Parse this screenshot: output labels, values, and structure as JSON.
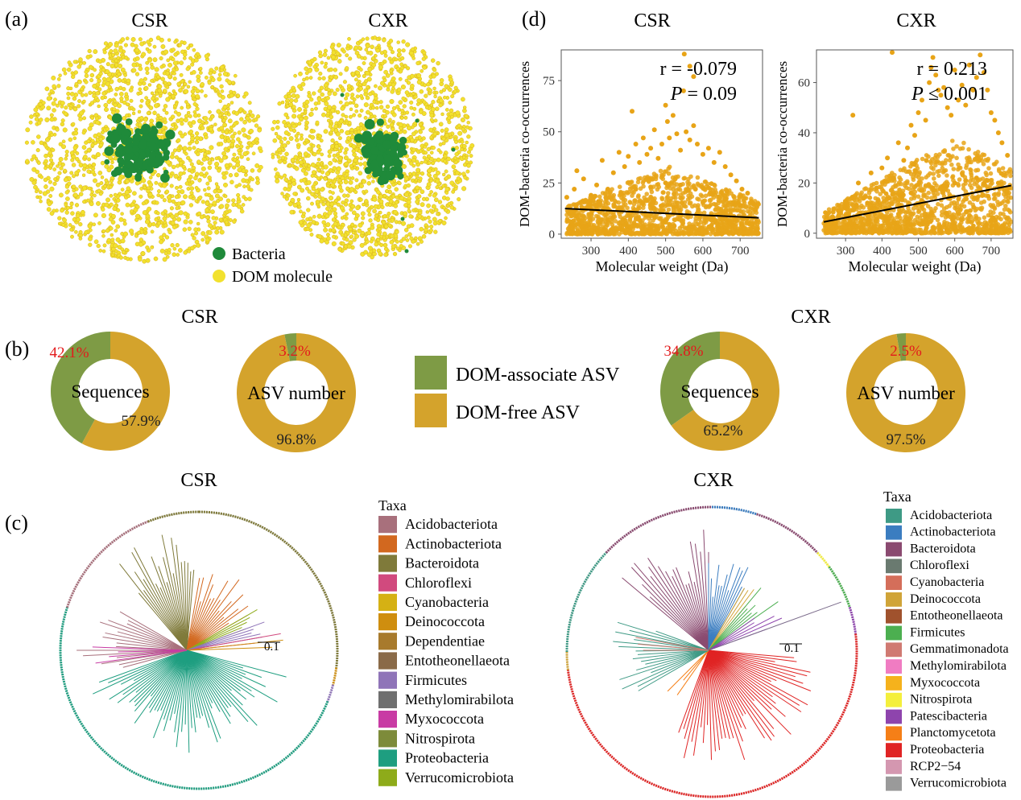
{
  "panel_labels": {
    "a": "(a)",
    "b": "(b)",
    "c": "(c)",
    "d": "(d)"
  },
  "colors": {
    "bacteria": "#1f8a3a",
    "dom": "#f2e12e",
    "dom_stroke": "#d9b21f",
    "scatter_point": "#e8a417",
    "dom_associate": "#7e9b45",
    "dom_free": "#d4a32c",
    "pct_red": "#e31a1c"
  },
  "network": {
    "legend": {
      "bacteria": "Bacteria",
      "dom": "DOM molecule"
    },
    "panels": [
      {
        "title": "CSR"
      },
      {
        "title": "CXR"
      }
    ]
  },
  "donut_legend": {
    "associate": "DOM-associate ASV",
    "free": "DOM-free ASV"
  },
  "trees": {
    "panels": [
      {
        "title": "CSR",
        "scale_label": "0.1",
        "legend_title": "Taxa",
        "taxa": [
          {
            "name": "Acidobacteriota",
            "color": "#a8707c"
          },
          {
            "name": "Actinobacteriota",
            "color": "#d2681f"
          },
          {
            "name": "Bacteroidota",
            "color": "#7f7a3a"
          },
          {
            "name": "Chloroflexi",
            "color": "#d14a7e"
          },
          {
            "name": "Cyanobacteria",
            "color": "#d5b114"
          },
          {
            "name": "Deinococcota",
            "color": "#cf8e0f"
          },
          {
            "name": "Dependentiae",
            "color": "#a87a2c"
          },
          {
            "name": "Entotheonellaeota",
            "color": "#8a6a48"
          },
          {
            "name": "Firmicutes",
            "color": "#8f74b8"
          },
          {
            "name": "Methylomirabilota",
            "color": "#6f6f6f"
          },
          {
            "name": "Myxococcota",
            "color": "#c83ba4"
          },
          {
            "name": "Nitrospirota",
            "color": "#7d8b3a"
          },
          {
            "name": "Proteobacteria",
            "color": "#1e9e80"
          },
          {
            "name": "Verrucomicrobiota",
            "color": "#8eab1a"
          }
        ]
      },
      {
        "title": "CXR",
        "scale_label": "0.1",
        "legend_title": "Taxa",
        "taxa": [
          {
            "name": "Acidobacteriota",
            "color": "#3e9a85"
          },
          {
            "name": "Actinobacteriota",
            "color": "#3b7dc0"
          },
          {
            "name": "Bacteroidota",
            "color": "#8a4a70"
          },
          {
            "name": "Chloroflexi",
            "color": "#6a7a70"
          },
          {
            "name": "Cyanobacteria",
            "color": "#d46e5a"
          },
          {
            "name": "Deinococcota",
            "color": "#d0a438"
          },
          {
            "name": "Entotheonellaeota",
            "color": "#a0522d"
          },
          {
            "name": "Firmicutes",
            "color": "#4caf50"
          },
          {
            "name": "Gemmatimonadota",
            "color": "#d07a72"
          },
          {
            "name": "Methylomirabilota",
            "color": "#f07cc2"
          },
          {
            "name": "Myxococcota",
            "color": "#f5b21c"
          },
          {
            "name": "Nitrospirota",
            "color": "#f4ef3c"
          },
          {
            "name": "Patescibacteria",
            "color": "#8e44ad"
          },
          {
            "name": "Planctomycetota",
            "color": "#f57f17"
          },
          {
            "name": "Proteobacteria",
            "color": "#e02424"
          },
          {
            "name": "RCP2−54",
            "color": "#d497b0"
          },
          {
            "name": "Verrucomicrobiota",
            "color": "#9a9a9a"
          }
        ]
      }
    ]
  },
  "chart_data": [
    {
      "type": "scatter",
      "panel": "d",
      "title": "CSR",
      "xlabel": "Molecular weight (Da)",
      "ylabel": "DOM-bacteria co-occurrences",
      "xlim": [
        220,
        760
      ],
      "ylim": [
        -2,
        90
      ],
      "xticks": [
        300,
        400,
        500,
        600,
        700
      ],
      "yticks": [
        0,
        25,
        50,
        75
      ],
      "annotation": {
        "r": "r = -0.079",
        "p_italic": "P",
        "p_rest": " = 0.09"
      },
      "trend_line": {
        "x": [
          230,
          750
        ],
        "y": [
          12.5,
          8
        ]
      },
      "points": [
        [
          235,
          18
        ],
        [
          255,
          22
        ],
        [
          262,
          31
        ],
        [
          280,
          27
        ],
        [
          300,
          19
        ],
        [
          315,
          24
        ],
        [
          330,
          36
        ],
        [
          345,
          22
        ],
        [
          360,
          30
        ],
        [
          375,
          40
        ],
        [
          390,
          33
        ],
        [
          400,
          38
        ],
        [
          410,
          60
        ],
        [
          420,
          44
        ],
        [
          430,
          35
        ],
        [
          440,
          47
        ],
        [
          450,
          39
        ],
        [
          460,
          42
        ],
        [
          470,
          51
        ],
        [
          480,
          37
        ],
        [
          490,
          44
        ],
        [
          500,
          63
        ],
        [
          505,
          55
        ],
        [
          510,
          47
        ],
        [
          520,
          58
        ],
        [
          530,
          49
        ],
        [
          540,
          41
        ],
        [
          548,
          70
        ],
        [
          555,
          50
        ],
        [
          565,
          46
        ],
        [
          575,
          53
        ],
        [
          585,
          44
        ],
        [
          600,
          39
        ],
        [
          615,
          42
        ],
        [
          630,
          35
        ],
        [
          645,
          40
        ],
        [
          660,
          33
        ],
        [
          675,
          29
        ],
        [
          690,
          26
        ],
        [
          705,
          22
        ],
        [
          720,
          20
        ],
        [
          735,
          15
        ],
        [
          550,
          88
        ],
        [
          565,
          82
        ],
        [
          575,
          77
        ],
        [
          260,
          14
        ],
        [
          290,
          13
        ],
        [
          320,
          16
        ],
        [
          350,
          18
        ],
        [
          380,
          20
        ],
        [
          420,
          22
        ],
        [
          460,
          23
        ],
        [
          500,
          25
        ],
        [
          540,
          24
        ],
        [
          580,
          22
        ],
        [
          620,
          20
        ],
        [
          660,
          17
        ],
        [
          700,
          14
        ],
        [
          740,
          12
        ]
      ],
      "cloud": {
        "x_range": [
          235,
          750
        ],
        "y_peak": 33,
        "x_peak": 510
      }
    },
    {
      "type": "scatter",
      "panel": "d",
      "title": "CXR",
      "xlabel": "Molecular weight (Da)",
      "ylabel": "DOM-bacteria co-occurrences",
      "xlim": [
        220,
        760
      ],
      "ylim": [
        -2,
        73
      ],
      "xticks": [
        300,
        400,
        500,
        600,
        700
      ],
      "yticks": [
        0,
        20,
        40,
        60
      ],
      "annotation": {
        "r": "r = 0.213",
        "p_italic": "P",
        "p_rest": " ≤ 0.001"
      },
      "trend_line": {
        "x": [
          240,
          755
        ],
        "y": [
          4.5,
          19
        ]
      },
      "points": [
        [
          245,
          3
        ],
        [
          265,
          6
        ],
        [
          280,
          9
        ],
        [
          300,
          12
        ],
        [
          320,
          47
        ],
        [
          335,
          20
        ],
        [
          350,
          14
        ],
        [
          370,
          24
        ],
        [
          385,
          18
        ],
        [
          400,
          26
        ],
        [
          415,
          30
        ],
        [
          430,
          22
        ],
        [
          445,
          36
        ],
        [
          460,
          29
        ],
        [
          470,
          34
        ],
        [
          480,
          43
        ],
        [
          490,
          39
        ],
        [
          500,
          48
        ],
        [
          510,
          53
        ],
        [
          520,
          45
        ],
        [
          530,
          60
        ],
        [
          535,
          66
        ],
        [
          540,
          70
        ],
        [
          548,
          63
        ],
        [
          555,
          57
        ],
        [
          562,
          55
        ],
        [
          570,
          58
        ],
        [
          580,
          50
        ],
        [
          590,
          47
        ],
        [
          600,
          65
        ],
        [
          610,
          53
        ],
        [
          620,
          59
        ],
        [
          630,
          51
        ],
        [
          640,
          67
        ],
        [
          650,
          57
        ],
        [
          660,
          62
        ],
        [
          670,
          71
        ],
        [
          680,
          64
        ],
        [
          690,
          57
        ],
        [
          700,
          48
        ],
        [
          710,
          45
        ],
        [
          720,
          40
        ],
        [
          730,
          36
        ],
        [
          745,
          31
        ],
        [
          428,
          72
        ],
        [
          300,
          10
        ],
        [
          330,
          11
        ],
        [
          360,
          12
        ],
        [
          390,
          13
        ],
        [
          420,
          14
        ],
        [
          450,
          15
        ],
        [
          480,
          16
        ],
        [
          510,
          17
        ],
        [
          540,
          18
        ],
        [
          570,
          19
        ],
        [
          600,
          20
        ],
        [
          630,
          21
        ],
        [
          660,
          22
        ],
        [
          690,
          21
        ],
        [
          720,
          20
        ],
        [
          750,
          18
        ]
      ],
      "cloud": {
        "x_range": [
          240,
          755
        ],
        "y_peak": 38,
        "x_peak": 600
      }
    },
    {
      "type": "pie",
      "panel": "b",
      "group": "CSR",
      "center_label": "Sequences",
      "slices": [
        {
          "name": "DOM-associate ASV",
          "value": 42.1,
          "label": "42.1%"
        },
        {
          "name": "DOM-free ASV",
          "value": 57.9,
          "label": "57.9%"
        }
      ]
    },
    {
      "type": "pie",
      "panel": "b",
      "group": "CSR",
      "center_label": "ASV number",
      "slices": [
        {
          "name": "DOM-associate ASV",
          "value": 3.2,
          "label": "3.2%"
        },
        {
          "name": "DOM-free ASV",
          "value": 96.8,
          "label": "96.8%"
        }
      ]
    },
    {
      "type": "pie",
      "panel": "b",
      "group": "CXR",
      "center_label": "Sequences",
      "slices": [
        {
          "name": "DOM-associate ASV",
          "value": 34.8,
          "label": "34.8%"
        },
        {
          "name": "DOM-free ASV",
          "value": 65.2,
          "label": "65.2%"
        }
      ]
    },
    {
      "type": "pie",
      "panel": "b",
      "group": "CXR",
      "center_label": "ASV number",
      "slices": [
        {
          "name": "DOM-associate ASV",
          "value": 2.5,
          "label": "2.5%"
        },
        {
          "name": "DOM-free ASV",
          "value": 97.5,
          "label": "97.5%"
        }
      ]
    }
  ]
}
